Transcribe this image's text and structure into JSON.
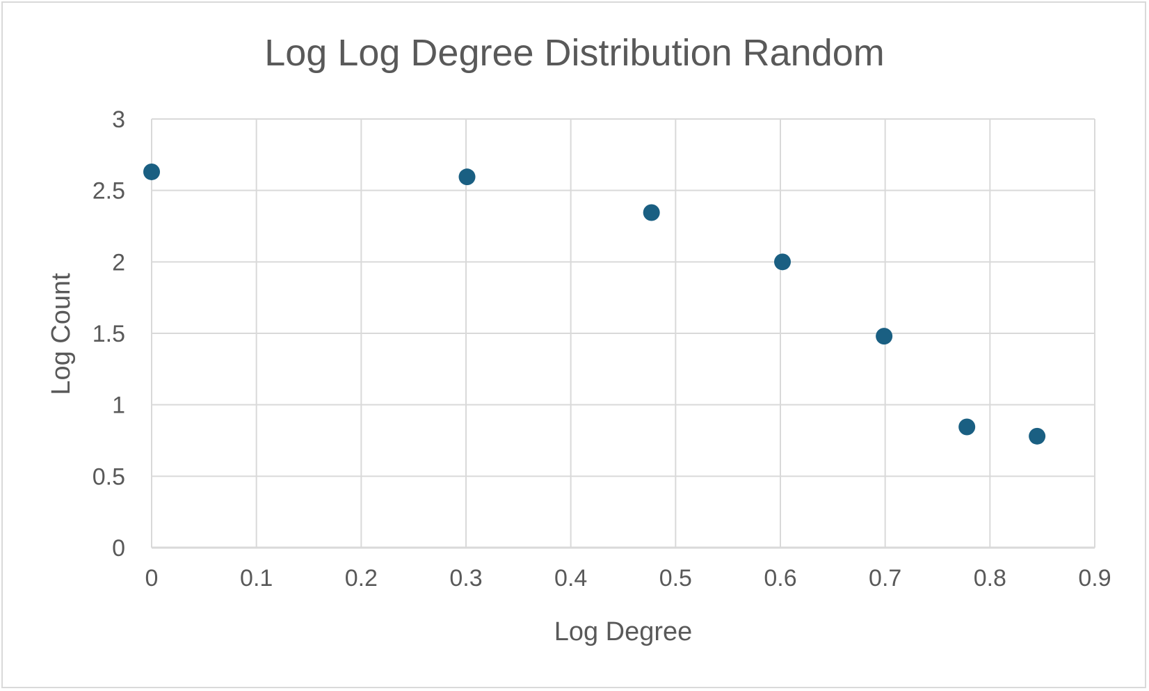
{
  "chart_data": {
    "type": "scatter",
    "title": "Log Log Degree Distribution Random",
    "xlabel": "Log Degree",
    "ylabel": "Log Count",
    "xlim": [
      0,
      0.9
    ],
    "ylim": [
      0,
      3
    ],
    "x_ticks": [
      "0",
      "0.1",
      "0.2",
      "0.3",
      "0.4",
      "0.5",
      "0.6",
      "0.7",
      "0.8",
      "0.9"
    ],
    "y_ticks": [
      "0",
      "0.5",
      "1",
      "1.5",
      "2",
      "2.5",
      "3"
    ],
    "grid": true,
    "legend": "none",
    "marker_color": "#1a5f82",
    "gridline_color": "#d9d9d9",
    "tick_label_color": "#595959",
    "points": [
      {
        "x": 0.0,
        "y": 2.63
      },
      {
        "x": 0.301,
        "y": 2.595
      },
      {
        "x": 0.477,
        "y": 2.345
      },
      {
        "x": 0.602,
        "y": 2.0
      },
      {
        "x": 0.699,
        "y": 1.48
      },
      {
        "x": 0.778,
        "y": 0.845
      },
      {
        "x": 0.845,
        "y": 0.78
      }
    ]
  }
}
